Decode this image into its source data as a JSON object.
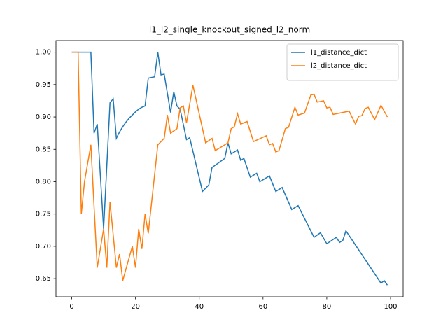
{
  "chart_data": {
    "type": "line",
    "title": "l1_l2_single_knockout_signed_l2_norm",
    "xlim": [
      -4.95,
      103.95
    ],
    "xticks": [
      0,
      20,
      40,
      60,
      80,
      100
    ],
    "ylim": [
      0.622,
      1.018
    ],
    "yticks": [
      0.65,
      {
        "value": 0.7,
        "label": "0.70"
      },
      0.75,
      {
        "value": 0.8,
        "label": "0.80"
      },
      0.85,
      {
        "value": 0.9,
        "label": "0.90"
      },
      0.95,
      {
        "value": 1.0,
        "label": "1.00"
      }
    ],
    "legend": "upper right",
    "grid": false,
    "series": [
      {
        "name": "l1_distance_dict",
        "color": "#1f77b4",
        "x": [
          0,
          6,
          7,
          8,
          10,
          12,
          13,
          14,
          15,
          16,
          17,
          18,
          19,
          20,
          21,
          22,
          23,
          24,
          26,
          27,
          28,
          29,
          31,
          32,
          33,
          34,
          36,
          37,
          41,
          43,
          44,
          48,
          49,
          50,
          52,
          53,
          54,
          56,
          58,
          59,
          62,
          64,
          66,
          69,
          71,
          76,
          78,
          80,
          83,
          84,
          85,
          86,
          97,
          98,
          99
        ],
        "values": [
          1.0,
          1.0,
          0.875,
          0.889,
          0.727,
          0.922,
          0.928,
          0.867,
          0.877,
          0.885,
          0.892,
          0.898,
          0.903,
          0.908,
          0.912,
          0.915,
          0.917,
          0.96,
          0.962,
          1.0,
          0.965,
          0.966,
          0.907,
          0.939,
          0.917,
          0.912,
          0.865,
          0.868,
          0.785,
          0.795,
          0.822,
          0.836,
          0.86,
          0.843,
          0.849,
          0.833,
          0.836,
          0.807,
          0.813,
          0.8,
          0.809,
          0.785,
          0.791,
          0.757,
          0.763,
          0.714,
          0.721,
          0.704,
          0.714,
          0.706,
          0.709,
          0.724,
          0.643,
          0.647,
          0.64
        ]
      },
      {
        "name": "l2_distance_dict",
        "color": "#ff7f0e",
        "x": [
          0,
          2,
          3,
          4,
          6,
          8,
          10,
          11,
          12,
          14,
          15,
          16,
          19,
          20,
          21,
          22,
          23,
          24,
          27,
          29,
          30,
          31,
          33,
          34,
          35,
          36,
          38,
          42,
          44,
          45,
          49,
          50,
          51,
          52,
          53,
          55,
          57,
          61,
          62,
          63,
          64,
          65,
          67,
          68,
          70,
          71,
          73,
          75,
          76,
          77,
          79,
          80,
          81,
          82,
          87,
          89,
          90,
          91,
          92,
          93,
          95,
          97,
          99
        ],
        "values": [
          1.0,
          1.0,
          0.75,
          0.8,
          0.857,
          0.667,
          0.727,
          0.667,
          0.769,
          0.667,
          0.688,
          0.647,
          0.7,
          0.667,
          0.727,
          0.696,
          0.75,
          0.72,
          0.857,
          0.867,
          0.903,
          0.875,
          0.882,
          0.914,
          0.917,
          0.891,
          0.949,
          0.86,
          0.867,
          0.848,
          0.86,
          0.882,
          0.885,
          0.905,
          0.889,
          0.893,
          0.862,
          0.871,
          0.857,
          0.859,
          0.846,
          0.848,
          0.882,
          0.884,
          0.915,
          0.903,
          0.906,
          0.934,
          0.935,
          0.923,
          0.925,
          0.914,
          0.915,
          0.904,
          0.909,
          0.889,
          0.901,
          0.902,
          0.913,
          0.915,
          0.896,
          0.918,
          0.9
        ]
      }
    ]
  }
}
